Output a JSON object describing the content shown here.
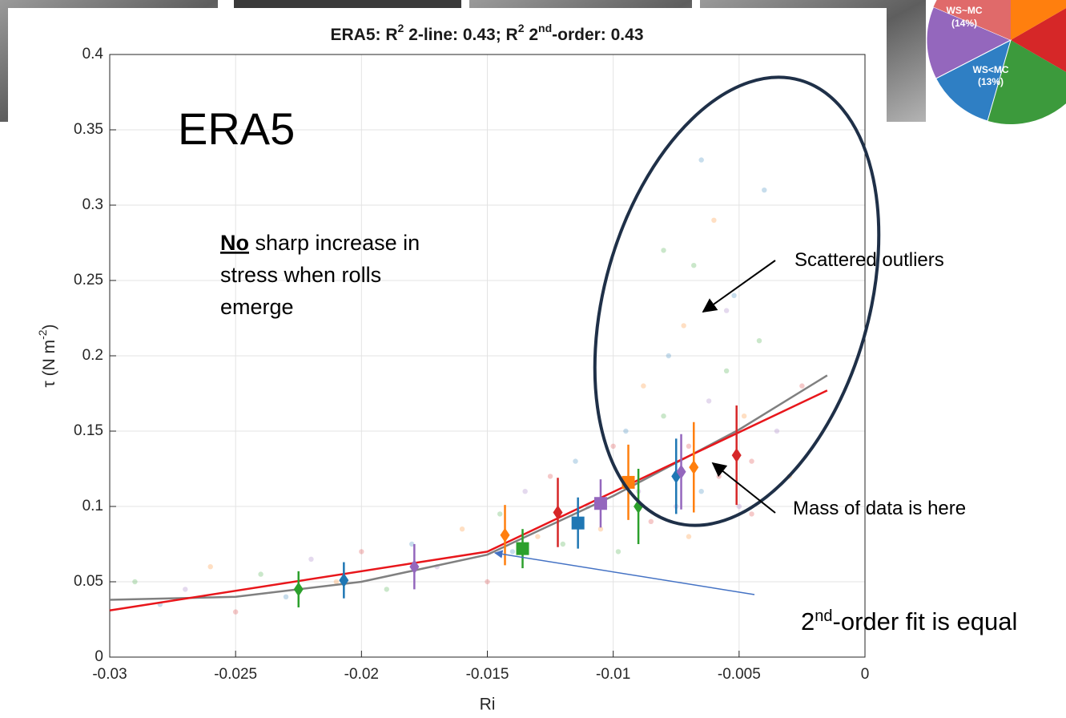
{
  "chart_data": {
    "type": "errorbar",
    "title_parts": [
      "ERA5: R",
      "2",
      " 2-line: 0.43; R",
      "2",
      " 2",
      "nd",
      "-order: 0.43"
    ],
    "x_label": "Ri",
    "y_label_parts": [
      "τ (N m",
      "-2",
      ")"
    ],
    "xlim": [
      -0.03,
      0
    ],
    "ylim": [
      0,
      0.4
    ],
    "xticks": [
      -0.03,
      -0.025,
      -0.02,
      -0.015,
      -0.01,
      -0.005,
      0
    ],
    "yticks": [
      0,
      0.05,
      0.1,
      0.15,
      0.2,
      0.25,
      0.3,
      0.35,
      0.4
    ],
    "grid": true,
    "series": [
      {
        "color": "#2ca02c",
        "x": [
          -0.0225,
          -0.0136,
          -0.009
        ],
        "values": [
          0.045,
          0.072,
          0.1
        ],
        "errors": [
          0.012,
          0.013,
          0.025
        ],
        "markers": [
          "diamond",
          "square",
          "diamond"
        ]
      },
      {
        "color": "#1f77b4",
        "x": [
          -0.0207,
          -0.0114,
          -0.0075
        ],
        "values": [
          0.051,
          0.089,
          0.12
        ],
        "errors": [
          0.012,
          0.017,
          0.025
        ],
        "markers": [
          "diamond",
          "square",
          "diamond"
        ]
      },
      {
        "color": "#9467bd",
        "x": [
          -0.0179,
          -0.0105,
          -0.0073
        ],
        "values": [
          0.06,
          0.102,
          0.123
        ],
        "errors": [
          0.015,
          0.016,
          0.025
        ],
        "markers": [
          "diamond",
          "square",
          "diamond"
        ]
      },
      {
        "color": "#ff7f0e",
        "x": [
          -0.0143,
          -0.0094,
          -0.0068
        ],
        "values": [
          0.081,
          0.116,
          0.126
        ],
        "errors": [
          0.02,
          0.025,
          0.03
        ],
        "markers": [
          "diamond",
          "square",
          "diamond"
        ]
      },
      {
        "color": "#d62728",
        "x": [
          -0.0122,
          -0.0051
        ],
        "values": [
          0.096,
          0.134
        ],
        "errors": [
          0.023,
          0.033
        ],
        "markers": [
          "diamond",
          "diamond"
        ]
      }
    ],
    "fits": [
      {
        "color": "#808080",
        "x": [
          -0.03,
          -0.025,
          -0.02,
          -0.015,
          -0.01,
          -0.005,
          -0.0015
        ],
        "values": [
          0.038,
          0.04,
          0.05,
          0.068,
          0.107,
          0.151,
          0.187
        ]
      },
      {
        "color": "#e8161b",
        "x": [
          -0.03,
          -0.015,
          -0.0015
        ],
        "values": [
          0.031,
          0.07,
          0.177
        ]
      }
    ],
    "cloud": {
      "colors": [
        "#2ca02c",
        "#1f77b4",
        "#9467bd",
        "#ff7f0e",
        "#d62728"
      ],
      "x": [
        -0.029,
        -0.028,
        -0.027,
        -0.026,
        -0.025,
        -0.024,
        -0.023,
        -0.022,
        -0.021,
        -0.02,
        -0.019,
        -0.018,
        -0.017,
        -0.016,
        -0.015,
        -0.0145,
        -0.014,
        -0.0135,
        -0.013,
        -0.0125,
        -0.012,
        -0.0115,
        -0.011,
        -0.0105,
        -0.01,
        -0.0098,
        -0.0095,
        -0.009,
        -0.0088,
        -0.0085,
        -0.008,
        -0.0078,
        -0.0075,
        -0.0072,
        -0.007,
        -0.0068,
        -0.0065,
        -0.0062,
        -0.006,
        -0.0058,
        -0.0055,
        -0.0052,
        -0.005,
        -0.0048,
        -0.0045,
        -0.0042,
        -0.004,
        -0.0035,
        -0.003,
        -0.0025,
        -0.008,
        -0.0065,
        -0.0055,
        -0.007,
        -0.0045
      ],
      "values": [
        0.05,
        0.035,
        0.045,
        0.06,
        0.03,
        0.055,
        0.04,
        0.065,
        0.05,
        0.07,
        0.045,
        0.075,
        0.06,
        0.085,
        0.05,
        0.095,
        0.07,
        0.11,
        0.08,
        0.12,
        0.075,
        0.13,
        0.1,
        0.085,
        0.14,
        0.07,
        0.15,
        0.11,
        0.18,
        0.09,
        0.16,
        0.2,
        0.1,
        0.22,
        0.14,
        0.26,
        0.11,
        0.17,
        0.29,
        0.12,
        0.19,
        0.24,
        0.1,
        0.16,
        0.13,
        0.21,
        0.31,
        0.15,
        0.12,
        0.18,
        0.27,
        0.33,
        0.23,
        0.08,
        0.095
      ]
    },
    "annotations": {
      "big_label": "ERA5",
      "note_parts": [
        "No",
        " sharp increase in",
        "stress when rolls",
        "emerge"
      ],
      "outliers": "Scattered outliers",
      "mass": "Mass of data is here",
      "fit_note_parts": [
        "2",
        "nd",
        "-order fit is equal"
      ]
    },
    "inset_pie": {
      "labels": [
        "WS~MC",
        "WS<MC"
      ],
      "values": [
        14,
        13
      ],
      "value_labels": [
        "(14%)",
        "(13%)"
      ],
      "colors": [
        "#9467bd",
        "#2f7fc4"
      ]
    }
  }
}
